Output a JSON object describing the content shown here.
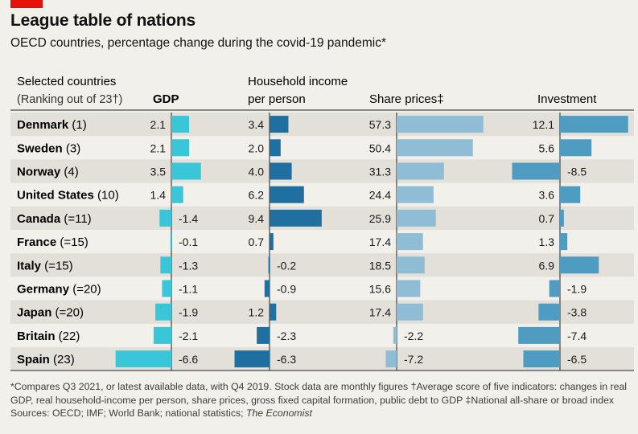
{
  "title": "League table of nations",
  "subtitle": "OECD countries, percentage change during the covid-19 pandemic*",
  "header": {
    "countries_line1": "Selected countries",
    "countries_line2": "(Ranking out of 23†)",
    "gdp": "GDP",
    "income_line1": "Household income",
    "income_line2": "per person",
    "shares": "Share prices‡",
    "investment": "Investment"
  },
  "colors": {
    "gdp": "#39c6d8",
    "income": "#1f6fa0",
    "shares": "#8fbdd6",
    "investment": "#4f9cc2",
    "band": "#e2e0d8",
    "accent": "#e3120b"
  },
  "chart_data": {
    "type": "bar",
    "title": "League table of nations",
    "subtitle": "OECD countries, percentage change during the covid-19 pandemic*",
    "categories": [
      "Denmark",
      "Sweden",
      "Norway",
      "United States",
      "Canada",
      "France",
      "Italy",
      "Germany",
      "Japan",
      "Britain",
      "Spain"
    ],
    "ranks": [
      "(1)",
      "(3)",
      "(4)",
      "(10)",
      "(=11)",
      "(=15)",
      "(=15)",
      "(=20)",
      "(=20)",
      "(22)",
      "(23)"
    ],
    "series": [
      {
        "name": "GDP",
        "values": [
          2.1,
          2.1,
          3.5,
          1.4,
          -1.4,
          -0.1,
          -1.3,
          -1.1,
          -1.9,
          -2.1,
          -6.6
        ]
      },
      {
        "name": "Household income per person",
        "values": [
          3.4,
          2.0,
          4.0,
          6.2,
          9.4,
          0.7,
          -0.2,
          -0.9,
          1.2,
          -2.3,
          -6.3
        ]
      },
      {
        "name": "Share prices",
        "values": [
          57.3,
          50.4,
          31.3,
          24.4,
          25.9,
          17.4,
          18.5,
          15.6,
          17.4,
          -2.2,
          -7.2
        ]
      },
      {
        "name": "Investment",
        "values": [
          12.1,
          5.6,
          -8.5,
          3.6,
          0.7,
          1.3,
          6.9,
          -1.9,
          -3.8,
          -7.4,
          -6.5
        ]
      }
    ]
  },
  "footnote": {
    "line1": "*Compares Q3 2021, or latest available data, with Q4 2019. Stock data are monthly figures    †Average score of five indicators: changes in real GDP, real household-income per person, share prices, gross fixed capital formation, public debt to GDP    ‡National all-share or broad index",
    "sources": "Sources: OECD; IMF; World Bank; national statistics; ",
    "sources_tail": "The Economist"
  }
}
